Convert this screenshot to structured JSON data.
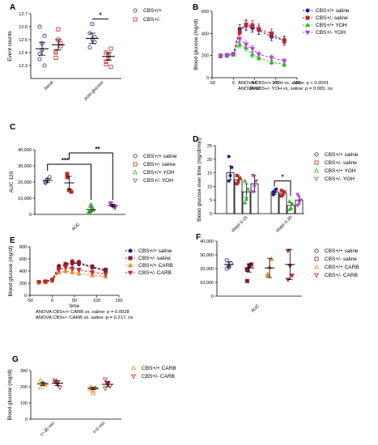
{
  "panel_labels": {
    "A": "A",
    "B": "B",
    "C": "C",
    "D": "D",
    "E": "E",
    "F": "F",
    "G": "G"
  },
  "colors": {
    "wt": "#1f1f8f",
    "het": "#c0282d",
    "wt_trt": "#2fbf2f",
    "het_trt": "#b344d6",
    "orange": "#f08c2c",
    "maroon": "#8b1a2a"
  },
  "chart_data": [
    {
      "id": "A",
      "type": "scatter",
      "ylabel": "Event counts",
      "categories": [
        "basal",
        "post-glucose"
      ],
      "ylim": [
        12.2,
        12.7
      ],
      "yticks": [
        12.3,
        12.4,
        12.5,
        12.6,
        12.7
      ],
      "series": [
        {
          "name": "CBS+/+",
          "marker": "circle",
          "color": "#1f1f8f",
          "points": [
            [
              12.35,
              12.42,
              12.53,
              12.6,
              12.47,
              12.3,
              12.39
            ],
            [
              12.55,
              12.62,
              12.48,
              12.44,
              12.5,
              12.52
            ]
          ],
          "mean": [
            12.43,
            12.51
          ],
          "sem": [
            0.05,
            0.04
          ]
        },
        {
          "name": "CBS+/-",
          "marker": "square",
          "color": "#c0282d",
          "points": [
            [
              12.41,
              12.58,
              12.47,
              12.36,
              12.5,
              12.45,
              12.4
            ],
            [
              12.33,
              12.38,
              12.43,
              12.31,
              12.36,
              12.29,
              12.4
            ]
          ],
          "mean": [
            12.46,
            12.37
          ],
          "sem": [
            0.04,
            0.03
          ]
        }
      ],
      "annotations": [
        {
          "text": "*"
        }
      ]
    },
    {
      "id": "B",
      "type": "line",
      "xlabel": "time",
      "ylabel": "Blood glucose (mg/dl)",
      "xlim": [
        -50,
        150
      ],
      "xticks": [
        -50,
        0,
        50,
        100,
        150
      ],
      "ylim": [
        0,
        600
      ],
      "yticks": [
        0,
        200,
        400,
        600
      ],
      "x": [
        -30,
        -15,
        0,
        15,
        30,
        45,
        60,
        90,
        120
      ],
      "series": [
        {
          "name": "CBS+/+ saline",
          "color": "#1f1f8f",
          "marker": "circle",
          "dash": "3,2",
          "values": [
            200,
            205,
            215,
            440,
            470,
            450,
            430,
            370,
            340
          ],
          "sem": [
            15,
            15,
            15,
            40,
            45,
            40,
            40,
            35,
            35
          ]
        },
        {
          "name": "CBS+/- saline",
          "color": "#c0282d",
          "marker": "square",
          "dash": "3,2",
          "values": [
            195,
            200,
            210,
            410,
            480,
            470,
            440,
            400,
            330
          ],
          "sem": [
            15,
            15,
            15,
            45,
            45,
            45,
            45,
            40,
            40
          ]
        },
        {
          "name": "CBS+/+ YOH",
          "color": "#2fbf2f",
          "marker": "triangle",
          "dash": "3,2",
          "values": [
            200,
            200,
            210,
            300,
            270,
            210,
            180,
            140,
            120
          ],
          "sem": [
            15,
            15,
            15,
            30,
            30,
            25,
            25,
            20,
            20
          ]
        },
        {
          "name": "CBS+/- YOH",
          "color": "#b344d6",
          "marker": "triangledown",
          "dash": "3,2",
          "values": [
            200,
            205,
            215,
            350,
            300,
            260,
            210,
            180,
            150
          ],
          "sem": [
            15,
            15,
            15,
            35,
            30,
            30,
            25,
            25,
            20
          ]
        }
      ],
      "annotations": [
        {
          "text": "ANOVA CBS+/+ YOH vs. saline: p < 0.0001"
        },
        {
          "text": "ANOVA CBS+/- YOH vs. saline: p = 0.065, ns"
        }
      ]
    },
    {
      "id": "C",
      "type": "scatter",
      "ylabel": "AUC 120",
      "xlabel": "AUC",
      "ylim": [
        0,
        40000
      ],
      "yticks": [
        0,
        10000,
        20000,
        30000,
        40000
      ],
      "series": [
        {
          "name": "CBS+/+ saline",
          "color": "#1f1f8f",
          "marker": "circle",
          "points": [
            20000,
            21500,
            23000,
            19500
          ],
          "mean": 21000,
          "sem": 1200
        },
        {
          "name": "CBS+/- saline",
          "color": "#c0282d",
          "marker": "square",
          "points": [
            25000,
            15000,
            14000,
            23000
          ],
          "mean": 19500,
          "sem": 4000
        },
        {
          "name": "CBS+/+ YOH",
          "color": "#2fbf2f",
          "marker": "triangle",
          "points": [
            1000,
            6000,
            3000,
            1500
          ],
          "mean": 3000,
          "sem": 1500
        },
        {
          "name": "CBS+/- YOH",
          "color": "#b344d6",
          "marker": "triangledown",
          "points": [
            6500,
            5000,
            4000,
            7000
          ],
          "mean": 5500,
          "sem": 800
        }
      ],
      "annotations": [
        {
          "text": "***"
        },
        {
          "text": "**"
        }
      ]
    },
    {
      "id": "D",
      "type": "bar",
      "ylabel": "Blood glucose over time (mg/dl/min)",
      "categories": [
        "slope 0-15",
        "slope 0-30"
      ],
      "ylim": [
        0,
        25
      ],
      "yticks": [
        0,
        5,
        10,
        15,
        20,
        25
      ],
      "series": [
        {
          "name": "CBS+/+ saline",
          "color": "#1f1f8f",
          "marker": "circle",
          "values": [
            15,
            8
          ],
          "sem": [
            2.5,
            1
          ],
          "points": [
            [
              12,
              14,
              17,
              21
            ],
            [
              7,
              8,
              9,
              8
            ]
          ]
        },
        {
          "name": "CBS+/- saline",
          "color": "#c0282d",
          "marker": "square",
          "values": [
            12.5,
            7.5
          ],
          "sem": [
            1.5,
            1
          ],
          "points": [
            [
              11,
              12,
              13,
              14
            ],
            [
              6.5,
              7,
              8,
              8.5
            ]
          ]
        },
        {
          "name": "CBS+/+ YOH",
          "color": "#2fbf2f",
          "marker": "triangle",
          "values": [
            8,
            3
          ],
          "sem": [
            3,
            1
          ],
          "points": [
            [
              4,
              6,
              9,
              12
            ],
            [
              1.5,
              2,
              3.5,
              4.5
            ]
          ]
        },
        {
          "name": "CBS+/- YOH",
          "color": "#b344d6",
          "marker": "triangledown",
          "values": [
            11,
            5
          ],
          "sem": [
            3,
            1.5
          ],
          "points": [
            [
              8,
              10,
              12,
              14
            ],
            [
              3,
              4,
              5,
              7
            ]
          ]
        }
      ],
      "annotations": [
        {
          "text": "*"
        }
      ]
    },
    {
      "id": "E",
      "type": "line",
      "xlabel": "time",
      "ylabel": "Blood glucose (mg/dl)",
      "xlim": [
        -50,
        150
      ],
      "xticks": [
        -50,
        0,
        50,
        100,
        150
      ],
      "ylim": [
        0,
        800
      ],
      "yticks": [
        0,
        200,
        400,
        600,
        800
      ],
      "x": [
        -30,
        -15,
        0,
        15,
        30,
        45,
        60,
        90,
        120
      ],
      "series": [
        {
          "name": "CBS+/+ saline",
          "color": "#1f1f8f",
          "marker": "circle",
          "dash": "3,2",
          "values": [
            220,
            230,
            260,
            480,
            500,
            530,
            520,
            460,
            400
          ],
          "sem": [
            15,
            15,
            20,
            30,
            35,
            35,
            35,
            30,
            30
          ]
        },
        {
          "name": "CBS+/- saline",
          "color": "#8b1a2a",
          "marker": "square",
          "dash": "3,2",
          "values": [
            215,
            225,
            250,
            470,
            510,
            550,
            540,
            470,
            420
          ],
          "sem": [
            15,
            15,
            20,
            30,
            35,
            40,
            40,
            35,
            30
          ]
        },
        {
          "name": "CBS+/+ CARB",
          "color": "#f08c2c",
          "marker": "triangle",
          "dash": "3,2",
          "values": [
            210,
            215,
            240,
            380,
            400,
            380,
            360,
            330,
            310
          ],
          "sem": [
            15,
            15,
            20,
            30,
            30,
            30,
            30,
            25,
            25
          ]
        },
        {
          "name": "CBS+/- CARB",
          "color": "#c0282d",
          "marker": "triangledown",
          "dash": "3,2",
          "values": [
            215,
            220,
            245,
            420,
            460,
            440,
            420,
            380,
            350
          ],
          "sem": [
            15,
            15,
            20,
            30,
            35,
            35,
            30,
            30,
            30
          ]
        }
      ],
      "annotations": [
        {
          "text": "ANOVA CBS+/+ CARB vs. saline: p = 0.0028"
        },
        {
          "text": "ANOVA CBS+/- CARB vs. saline: p = 0.217, ns"
        }
      ]
    },
    {
      "id": "F",
      "type": "scatter",
      "xlabel": "AUC",
      "ylim": [
        0,
        40000
      ],
      "yticks": [
        0,
        10000,
        20000,
        30000,
        40000
      ],
      "series": [
        {
          "name": "CBS+/+ saline",
          "color": "#1f1f8f",
          "marker": "circle",
          "points": [
            20000,
            22000,
            24000,
            26000,
            21000
          ],
          "mean": 23000,
          "sem": 1800
        },
        {
          "name": "CBS+/- saline",
          "color": "#8b1a2a",
          "marker": "square",
          "points": [
            19000,
            22000,
            23000,
            11000
          ],
          "mean": 20500,
          "sem": 3000
        },
        {
          "name": "CBS+/+ CARB",
          "color": "#f08c2c",
          "marker": "triangle",
          "points": [
            16000,
            21000,
            27000,
            15000
          ],
          "mean": 20500,
          "sem": 7000
        },
        {
          "name": "CBS+/- CARB",
          "color": "#c0282d",
          "marker": "triangledown",
          "points": [
            33000,
            22000,
            15000,
            12000
          ],
          "mean": 23000,
          "sem": 11000
        }
      ]
    },
    {
      "id": "G",
      "type": "scatter",
      "ylabel": "Blood glucose (mg/dl)",
      "categories": [
        "t=-30 min",
        "t=0 min"
      ],
      "ylim": [
        0,
        300
      ],
      "yticks": [
        0,
        100,
        200,
        300
      ],
      "series": [
        {
          "name": "CBS+/+ CARB",
          "color": "#f08c2c",
          "marker": "triangle",
          "points": [
            [
              240,
              220,
              210,
              195,
              225
            ],
            [
              185,
              160,
              195,
              200,
              175
            ]
          ],
          "mean": [
            218,
            190
          ],
          "sem": [
            10,
            8
          ]
        },
        {
          "name": "CBS+/- CARB",
          "color": "#c0282d",
          "marker": "triangledown",
          "points": [
            [
              240,
              215,
              195,
              230,
              225
            ],
            [
              245,
              225,
              205,
              190,
              215
            ]
          ],
          "mean": [
            222,
            215
          ],
          "sem": [
            15,
            15
          ]
        }
      ]
    }
  ]
}
